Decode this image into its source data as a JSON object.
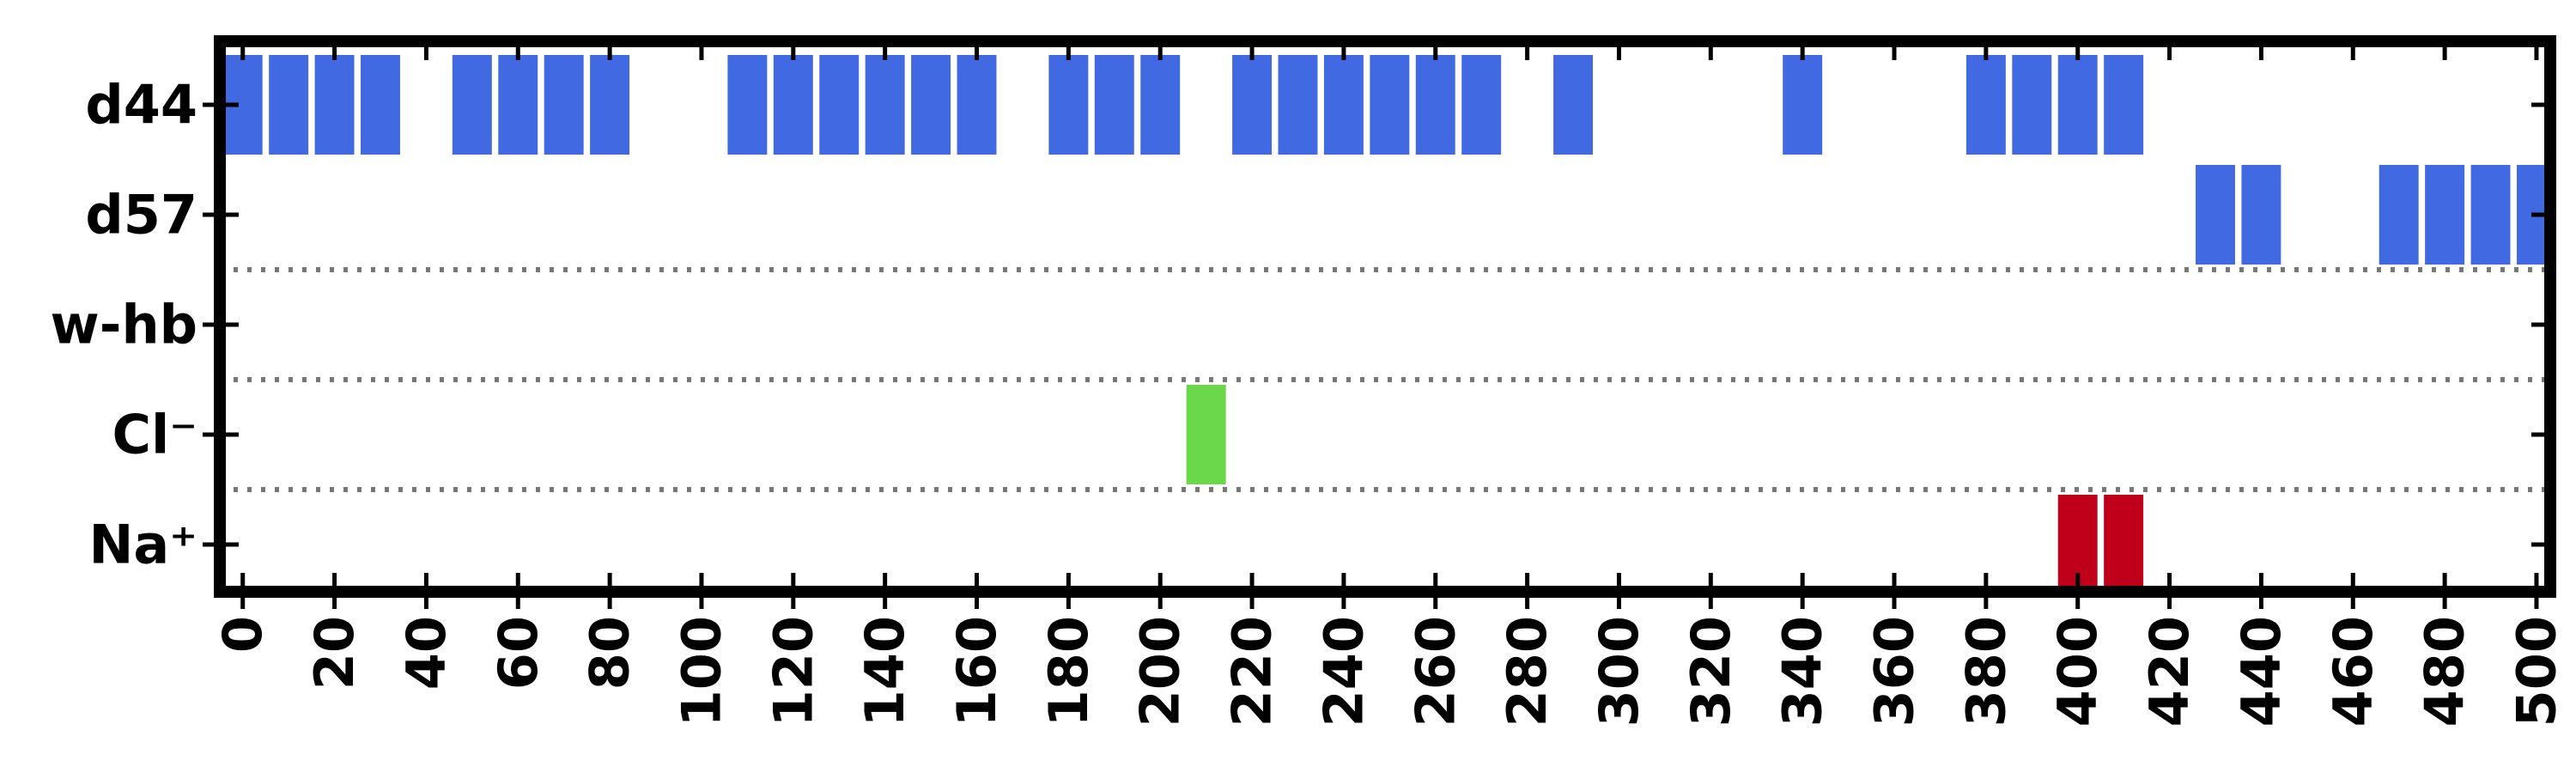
{
  "chart_data": {
    "type": "event",
    "categories": [
      "d44",
      "d57",
      "w-hb",
      "Cl⁻",
      "Na⁺"
    ],
    "events": [
      {
        "color": "#4169e1",
        "x": [
          0,
          10,
          20,
          30,
          50,
          60,
          70,
          80,
          110,
          120,
          130,
          140,
          150,
          160,
          180,
          190,
          200,
          220,
          230,
          240,
          250,
          260,
          270,
          290,
          340,
          380,
          390,
          400,
          410
        ]
      },
      {
        "color": "#4169e1",
        "x": [
          430,
          440,
          470,
          480,
          490,
          500
        ]
      },
      {
        "color": "#4169e1",
        "x": []
      },
      {
        "color": "#6ad84a",
        "x": [
          210
        ]
      },
      {
        "color": "#c0001a",
        "x": [
          400,
          410
        ]
      }
    ],
    "xlim": [
      -5,
      503
    ],
    "xticks": [
      0,
      20,
      40,
      60,
      80,
      100,
      120,
      140,
      160,
      180,
      200,
      220,
      240,
      260,
      280,
      300,
      320,
      340,
      360,
      380,
      400,
      420,
      440,
      460,
      480,
      500
    ]
  }
}
